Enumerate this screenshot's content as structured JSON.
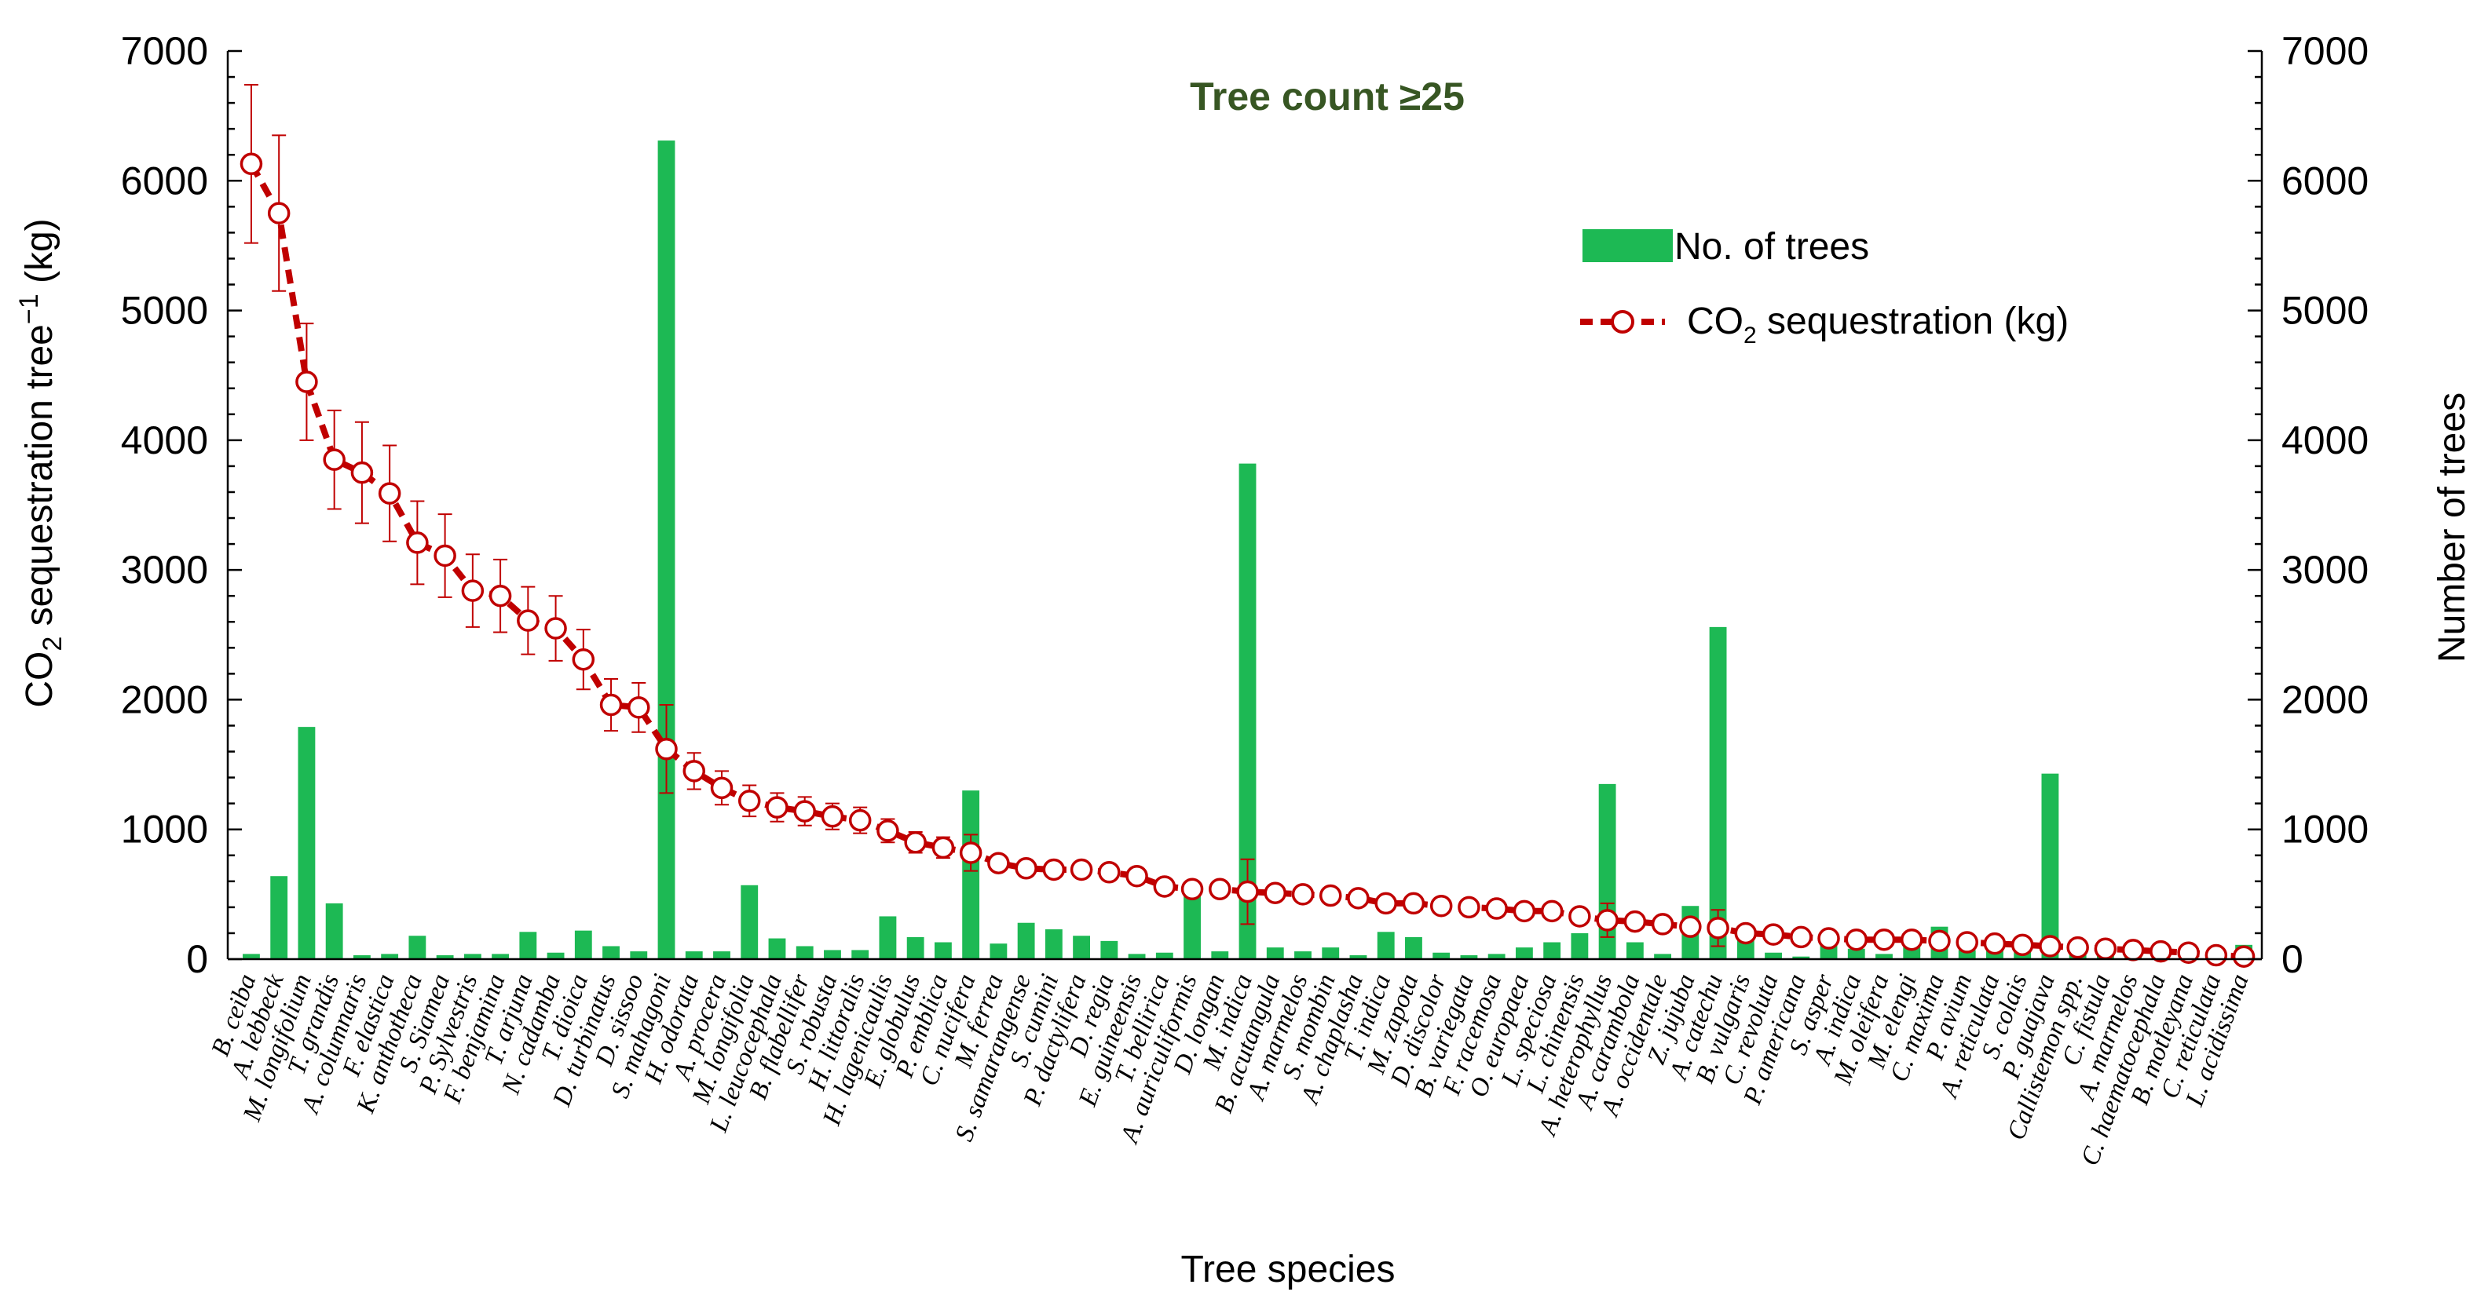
{
  "chart_data": {
    "type": "bar+line",
    "title": "",
    "annotation": "Tree count ≥25",
    "xlabel": "Tree species",
    "ylabel": "CO2 sequestration tree−1 (kg)",
    "ylabel_parts": [
      "CO",
      "2",
      " sequestration tree",
      "−1",
      " (kg)"
    ],
    "y2label": "Number of trees",
    "ylim": [
      0,
      7000
    ],
    "y2lim": [
      0,
      7000
    ],
    "yticks": [
      0,
      1000,
      2000,
      3000,
      4000,
      5000,
      6000,
      7000
    ],
    "legend_position": "upper-right",
    "colors": {
      "bars": "#1db954",
      "line": "#c00000",
      "annotation": "#375623"
    },
    "categories": [
      "B. ceiba",
      "A. lebbeck",
      "M. longifolium",
      "T. grandis",
      "A. columnaris",
      "F. elastica",
      "K. anthotheca",
      "S. Siamea",
      "P. Sylvestris",
      "F. benjamina",
      "T. arjuna",
      "N. cadamba",
      "T. dioica",
      "D. turbinatus",
      "D. sissoo",
      "S. mahagoni",
      "H. odorata",
      "A. procera",
      "M. longifolia",
      "L. leucocephala",
      "B. flabellifer",
      "S. robusta",
      "H. littoralis",
      "H. lagenicaulis",
      "E. globulus",
      "P. emblica",
      "C. nucifera",
      "M. ferrea",
      "S. samarangense",
      "S. cumini",
      "P. dactylifera",
      "D. regia",
      "E. guineensis",
      "T. bellirica",
      "A. auriculiformis",
      "D. longan",
      "M. indica",
      "B. acutangula",
      "A. marmelos",
      "S. mombin",
      "A. chaplasha",
      "T. indica",
      "M. zapota",
      "D. discolor",
      "B. variegata",
      "F. racemosa",
      "O. europaea",
      "L. speciosa",
      "L. chinensis",
      "A. heterophyllus",
      "A. carambola",
      "A. occidentale",
      "Z. jujuba",
      "A. catechu",
      "B. vulgaris",
      "C. revoluta",
      "P. americana",
      "S. asper",
      "A. indica",
      "M. oleifera",
      "M. elengi",
      "C. maxima",
      "P. avium",
      "A. reticulata",
      "S. colais",
      "P. guajava",
      "Callistemon spp.",
      "C. fistula",
      "A. marmelos",
      "C. haematocephala",
      "B. motleyana",
      "C. reticulata",
      "L. acidissima"
    ],
    "series": [
      {
        "name": "No. of trees",
        "type": "bar",
        "axis": "right",
        "values": [
          40,
          640,
          1790,
          430,
          30,
          40,
          180,
          30,
          40,
          40,
          210,
          50,
          220,
          100,
          60,
          6310,
          60,
          60,
          570,
          160,
          100,
          70,
          70,
          330,
          170,
          130,
          1300,
          120,
          280,
          230,
          180,
          140,
          40,
          50,
          520,
          60,
          3820,
          90,
          60,
          90,
          30,
          210,
          170,
          50,
          30,
          40,
          90,
          130,
          200,
          1350,
          130,
          40,
          410,
          2560,
          170,
          50,
          20,
          110,
          80,
          40,
          130,
          250,
          70,
          80,
          90,
          1430,
          70,
          30,
          20,
          20,
          20,
          20,
          110
        ]
      },
      {
        "name": "CO2 sequestration (kg)",
        "legend_label": "CO sequestration (kg)",
        "legend_sub": "2",
        "type": "line",
        "axis": "left",
        "values": [
          6130,
          5750,
          4450,
          3850,
          3750,
          3590,
          3210,
          3110,
          2840,
          2800,
          2610,
          2550,
          2310,
          1960,
          1940,
          1620,
          1450,
          1320,
          1220,
          1170,
          1140,
          1100,
          1070,
          990,
          900,
          860,
          820,
          740,
          700,
          690,
          690,
          670,
          640,
          560,
          540,
          540,
          520,
          510,
          500,
          490,
          470,
          430,
          430,
          410,
          400,
          390,
          370,
          370,
          330,
          300,
          290,
          270,
          250,
          240,
          200,
          190,
          170,
          160,
          150,
          150,
          150,
          140,
          130,
          120,
          110,
          100,
          90,
          80,
          70,
          60,
          50,
          30,
          20
        ],
        "errors": [
          610,
          600,
          450,
          380,
          390,
          370,
          320,
          320,
          280,
          280,
          260,
          250,
          230,
          200,
          190,
          340,
          140,
          130,
          120,
          110,
          110,
          100,
          100,
          90,
          80,
          80,
          140,
          60,
          60,
          60,
          50,
          50,
          50,
          40,
          40,
          40,
          250,
          40,
          30,
          30,
          30,
          30,
          30,
          30,
          30,
          30,
          30,
          30,
          30,
          130,
          30,
          30,
          30,
          140,
          20,
          20,
          20,
          20,
          20,
          20,
          20,
          20,
          20,
          20,
          20,
          20,
          20,
          20,
          20,
          20,
          20,
          20,
          20
        ]
      }
    ]
  }
}
